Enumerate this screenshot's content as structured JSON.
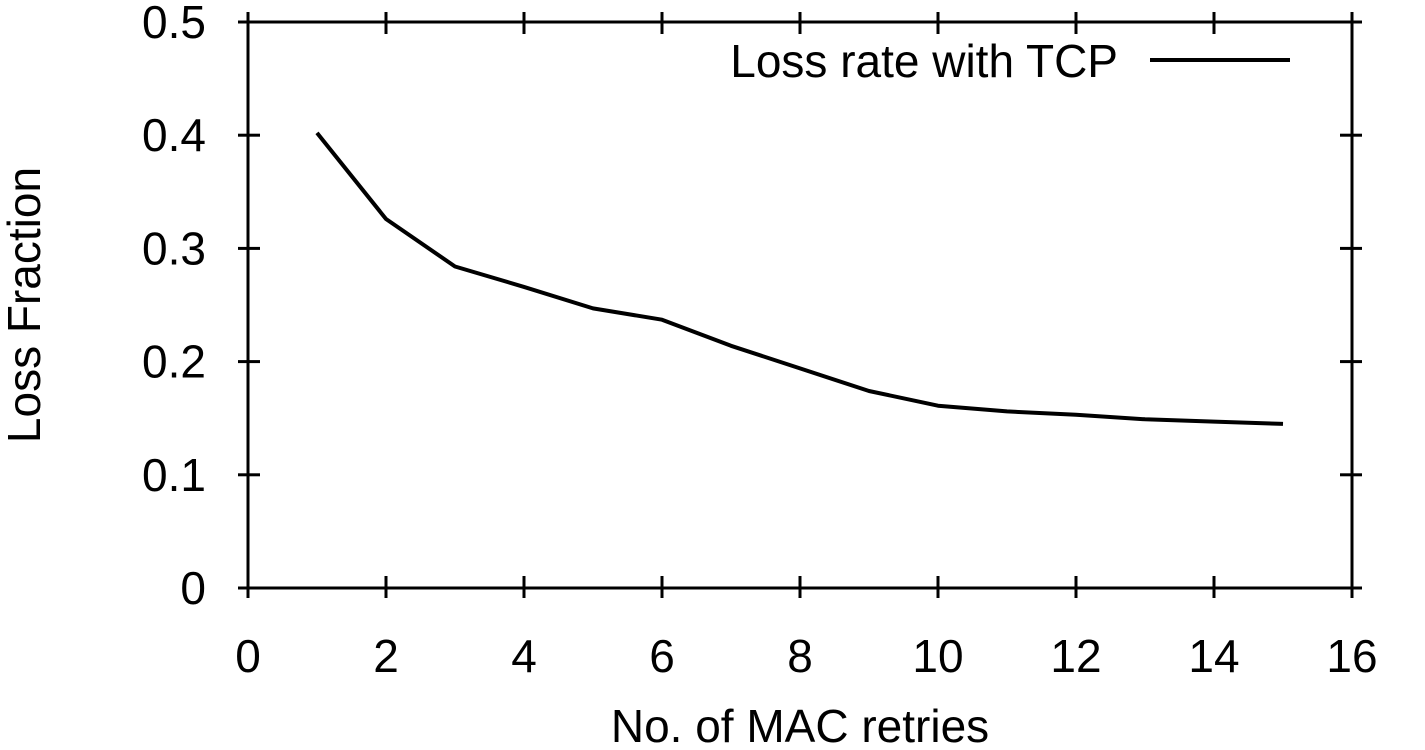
{
  "chart_data": {
    "type": "line",
    "xlabel": "No. of MAC retries",
    "ylabel": "Loss Fraction",
    "xlim": [
      0,
      16
    ],
    "ylim": [
      0,
      0.5
    ],
    "xticks": [
      0,
      2,
      4,
      6,
      8,
      10,
      12,
      14,
      16
    ],
    "yticks": [
      0,
      0.1,
      0.2,
      0.3,
      0.4,
      0.5
    ],
    "grid": false,
    "legend": {
      "placement": "top-right"
    },
    "series": [
      {
        "name": "Loss rate with TCP",
        "color": "#000000",
        "x": [
          1,
          2,
          3,
          4,
          5,
          6,
          7,
          8,
          9,
          10,
          11,
          12,
          13,
          14,
          15
        ],
        "values": [
          0.402,
          0.326,
          0.284,
          0.266,
          0.247,
          0.237,
          0.214,
          0.194,
          0.174,
          0.161,
          0.156,
          0.153,
          0.149,
          0.147,
          0.145
        ]
      }
    ]
  }
}
